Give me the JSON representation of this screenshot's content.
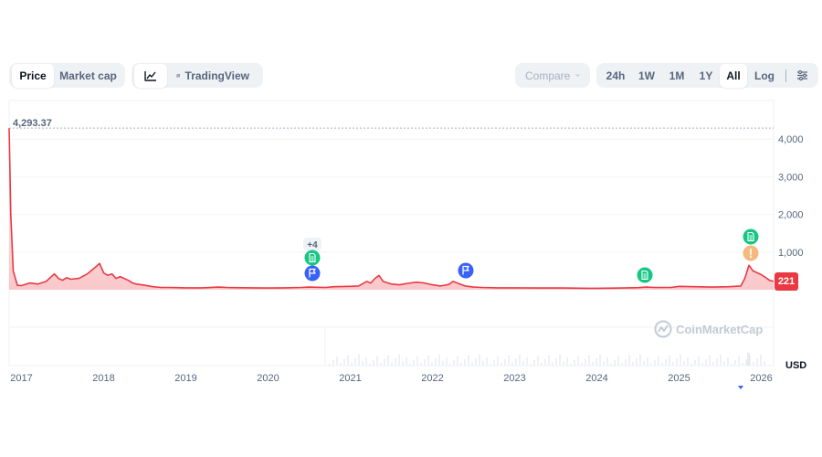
{
  "toolbar": {
    "type_tabs": [
      {
        "label": "Price"
      },
      {
        "label": "Market cap"
      }
    ],
    "tradingview_label": "TradingView",
    "compare_label": "Compare",
    "ranges": [
      "24h",
      "1W",
      "1M",
      "1Y",
      "All"
    ],
    "log_label": "Log",
    "icons": {
      "line_chart": "line-chart-icon",
      "candles": "candlestick-icon",
      "settings": "sliders-icon",
      "chevron": "chevron-down-icon"
    }
  },
  "watermark": "CoinMarketCap",
  "currency_label": "USD",
  "current_price_label": "221",
  "max_label": "4,293.37",
  "event_badge_count": "+4",
  "colors": {
    "line": "#ea3943",
    "accent": "#3861fb",
    "green": "#16c784",
    "orange": "#f5b97f",
    "fill_top": "#f8c9cc"
  },
  "chart_data": {
    "type": "line",
    "ylim": [
      0,
      4500
    ],
    "y_ticks": [
      1000,
      2000,
      3000,
      4000
    ],
    "y_tick_labels": [
      "1,000",
      "2,000",
      "3,000",
      "4,000"
    ],
    "x_tick_labels": [
      "2017",
      "2018",
      "2019",
      "2020",
      "2021",
      "2022",
      "2023",
      "2024",
      "2025",
      "2026"
    ],
    "x_range": [
      2016.85,
      2026.15
    ],
    "grid": true,
    "series": [
      {
        "x": [
          2016.85,
          2016.87,
          2016.9,
          2016.95,
          2017.0,
          2017.1,
          2017.2,
          2017.3,
          2017.4,
          2017.45,
          2017.5,
          2017.55,
          2017.6,
          2017.7,
          2017.8,
          2017.9,
          2017.95,
          2018.0,
          2018.05,
          2018.1,
          2018.15,
          2018.2,
          2018.3,
          2018.35,
          2018.4,
          2018.5,
          2018.6,
          2018.7,
          2018.8,
          2018.9,
          2019.0,
          2019.2,
          2019.4,
          2019.5,
          2019.6,
          2019.8,
          2020.0,
          2020.2,
          2020.4,
          2020.5,
          2020.6,
          2020.7,
          2020.8,
          2021.0,
          2021.1,
          2021.2,
          2021.25,
          2021.3,
          2021.35,
          2021.4,
          2021.5,
          2021.6,
          2021.7,
          2021.8,
          2021.9,
          2022.0,
          2022.1,
          2022.2,
          2022.25,
          2022.3,
          2022.4,
          2022.5,
          2022.6,
          2022.8,
          2023.0,
          2023.3,
          2023.6,
          2023.9,
          2024.0,
          2024.3,
          2024.5,
          2024.6,
          2024.7,
          2024.9,
          2025.0,
          2025.2,
          2025.4,
          2025.6,
          2025.75,
          2025.8,
          2025.85,
          2025.9,
          2026.0,
          2026.05,
          2026.1,
          2026.15
        ],
        "values": [
          4293,
          2000,
          500,
          120,
          110,
          180,
          150,
          220,
          420,
          300,
          250,
          320,
          280,
          300,
          420,
          600,
          700,
          450,
          380,
          420,
          300,
          350,
          250,
          180,
          150,
          120,
          80,
          60,
          60,
          55,
          50,
          50,
          70,
          60,
          55,
          50,
          45,
          50,
          60,
          70,
          65,
          60,
          80,
          90,
          100,
          220,
          180,
          300,
          380,
          220,
          150,
          130,
          170,
          200,
          180,
          130,
          100,
          140,
          220,
          180,
          100,
          70,
          60,
          50,
          50,
          45,
          45,
          40,
          40,
          45,
          55,
          70,
          60,
          60,
          90,
          80,
          70,
          80,
          100,
          300,
          650,
          500,
          400,
          330,
          250,
          221
        ]
      }
    ]
  }
}
